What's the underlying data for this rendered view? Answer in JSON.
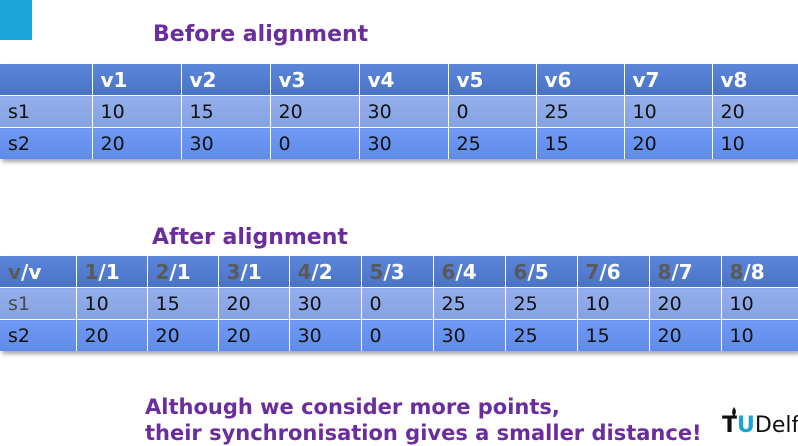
{
  "before": {
    "title": "Before alignment",
    "header": [
      "",
      "v1",
      "v2",
      "v3",
      "v4",
      "v5",
      "v6",
      "v7",
      "v8"
    ],
    "rows": [
      [
        "s1",
        "10",
        "15",
        "20",
        "30",
        "0",
        "25",
        "10",
        "20"
      ],
      [
        "s2",
        "20",
        "30",
        "0",
        "30",
        "25",
        "15",
        "20",
        "10"
      ]
    ]
  },
  "after": {
    "title": "After alignment",
    "header": [
      {
        "a": "v",
        "b": "/v"
      },
      {
        "a": "1",
        "b": "/1"
      },
      {
        "a": "2",
        "b": "/1"
      },
      {
        "a": "3",
        "b": "/1"
      },
      {
        "a": "4",
        "b": "/2"
      },
      {
        "a": "5",
        "b": "/3"
      },
      {
        "a": "6",
        "b": "/4"
      },
      {
        "a": "6",
        "b": "/5"
      },
      {
        "a": "7",
        "b": "/6"
      },
      {
        "a": "8",
        "b": "/7"
      },
      {
        "a": "8",
        "b": "/8"
      }
    ],
    "rows": [
      [
        "s1",
        "10",
        "15",
        "20",
        "30",
        "0",
        "25",
        "25",
        "10",
        "20",
        "10"
      ],
      [
        "s2",
        "20",
        "20",
        "20",
        "30",
        "0",
        "30",
        "25",
        "15",
        "20",
        "10"
      ]
    ]
  },
  "note": {
    "line1": "Although we consider more points,",
    "line2": "their synchronisation gives a smaller distance!"
  },
  "logo": {
    "tu_t": "T",
    "tu_u": "U",
    "rest": "Delf"
  },
  "colors": {
    "accent": "#6b2d9e",
    "corner": "#1aa4d8",
    "header": "#4f7bd0",
    "row1": "#8aa6e6",
    "row2": "#6690ee"
  }
}
